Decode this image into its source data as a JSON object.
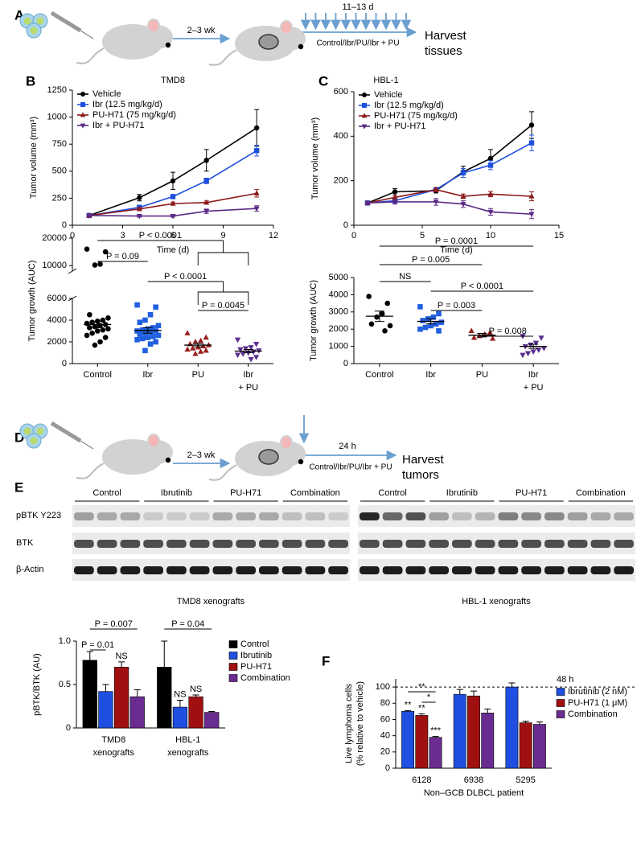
{
  "panel_labels": [
    "A",
    "B",
    "C",
    "D",
    "E",
    "F"
  ],
  "schematic_a": {
    "interval": "2–3 wk",
    "duration": "11–13 d",
    "regimen": "Control/Ibr/PU/Ibr + PU",
    "outcome": [
      "Harvest",
      "tissues"
    ]
  },
  "schematic_d": {
    "interval": "2–3 wk",
    "duration": "24 h",
    "regimen": "Control/Ibr/PU/Ibr + PU",
    "outcome": [
      "Harvest",
      "tumors"
    ]
  },
  "blots": {
    "row_labels": [
      "pBTK Y223",
      "BTK",
      "β-Actin"
    ],
    "groups": [
      "Control",
      "Ibrutinib",
      "PU-H71",
      "Combination"
    ],
    "captions": [
      "TMD8 xenografts",
      "HBL-1 xenografts"
    ]
  },
  "chart_data": [
    {
      "type": "line",
      "title": "TMD8",
      "x_label": "Time (d)",
      "y_label": "Tumor volume (mm³)",
      "xlim": [
        0,
        12
      ],
      "xticks": [
        0,
        3,
        6,
        9,
        12
      ],
      "ylim": [
        0,
        1250
      ],
      "yticks": [
        0,
        250,
        500,
        750,
        1000,
        1250
      ],
      "x": [
        1,
        4,
        6,
        8,
        11
      ],
      "series": [
        {
          "name": "Vehicle",
          "color": "#000000",
          "marker": "circle",
          "values": [
            90,
            255,
            410,
            600,
            900
          ],
          "errors": [
            10,
            30,
            80,
            100,
            170
          ]
        },
        {
          "name": "Ibr (12.5 mg/kg/d)",
          "color": "#1f4fe0",
          "marker": "square",
          "values": [
            90,
            165,
            265,
            410,
            690
          ],
          "errors": [
            10,
            20,
            20,
            25,
            50
          ]
        },
        {
          "name": "PU-H71 (75 mg/kg/d)",
          "color": "#8b1a1a",
          "marker": "triangle",
          "values": [
            90,
            150,
            200,
            210,
            295
          ],
          "errors": [
            5,
            15,
            15,
            15,
            35
          ]
        },
        {
          "name": "Ibr + PU-H71",
          "color": "#5b2a86",
          "marker": "triangle-down",
          "values": [
            90,
            85,
            85,
            130,
            155
          ],
          "errors": [
            5,
            10,
            10,
            20,
            25
          ]
        }
      ]
    },
    {
      "type": "line",
      "title": "HBL-1",
      "x_label": "Time (d)",
      "y_label": "Tumor volume (mm³)",
      "xlim": [
        0,
        15
      ],
      "xticks": [
        0,
        5,
        10,
        15
      ],
      "ylim": [
        0,
        600
      ],
      "yticks": [
        0,
        200,
        400,
        600
      ],
      "x": [
        1,
        3,
        6,
        8,
        10,
        13
      ],
      "series": [
        {
          "name": "Vehicle",
          "color": "#000000",
          "marker": "circle",
          "values": [
            100,
            150,
            155,
            240,
            300,
            450
          ],
          "errors": [
            5,
            15,
            10,
            25,
            40,
            60
          ]
        },
        {
          "name": "Ibr (12.5 mg/kg/d)",
          "color": "#1f4fe0",
          "marker": "square",
          "values": [
            100,
            110,
            160,
            235,
            270,
            370
          ],
          "errors": [
            5,
            10,
            10,
            20,
            20,
            35
          ]
        },
        {
          "name": "PU-H71 (75 mg/kg/d)",
          "color": "#8b1a1a",
          "marker": "triangle",
          "values": [
            100,
            125,
            160,
            130,
            140,
            130
          ],
          "errors": [
            5,
            10,
            10,
            10,
            12,
            20
          ]
        },
        {
          "name": "Ibr + PU-H71",
          "color": "#5b2a86",
          "marker": "triangle-down",
          "values": [
            100,
            105,
            105,
            95,
            60,
            50
          ],
          "errors": [
            5,
            10,
            15,
            15,
            15,
            20
          ]
        }
      ]
    },
    {
      "type": "dot",
      "y_label": "Tumor growth (AUC)",
      "categories": [
        "Control",
        "Ibr",
        "PU",
        "Ibr + PU"
      ],
      "colors": [
        "#000000",
        "#1f5fe0",
        "#9a2020",
        "#5b2d8e"
      ],
      "markers": [
        "circle",
        "square",
        "triangle",
        "triangle-down"
      ],
      "ylim": [
        0,
        6000
      ],
      "yticks": [
        0,
        2000,
        4000,
        6000
      ],
      "y_break_lim": [
        8000,
        20000
      ],
      "y_break_ticks": [
        10000,
        20000
      ],
      "points": [
        [
          16000,
          15000,
          10500,
          10200,
          4500,
          4200,
          4000,
          3900,
          3800,
          3700,
          3600,
          3500,
          3400,
          3300,
          3200,
          3100,
          3000,
          2800,
          2600,
          2400,
          2000,
          1700
        ],
        [
          5400,
          5200,
          4500,
          4000,
          3800,
          3500,
          3300,
          3200,
          3100,
          3000,
          3000,
          2900,
          2800,
          2700,
          2600,
          2500,
          2400,
          2300,
          2200,
          2000,
          1800,
          1200
        ],
        [
          2800,
          2400,
          2100,
          2000,
          1800,
          1700,
          1600,
          1500,
          1400,
          1300,
          1200,
          1100,
          900
        ],
        [
          2200,
          1800,
          1500,
          1400,
          1300,
          1200,
          1100,
          1000,
          900,
          800,
          600,
          400
        ]
      ],
      "means": [
        3600,
        3050,
        1700,
        1150
      ],
      "errors": [
        300,
        250,
        150,
        150
      ],
      "annotations": [
        "P < 0.0001",
        "P = 0.09",
        "P < 0.0001",
        "P = 0.0045"
      ]
    },
    {
      "type": "dot",
      "y_label": "Tumor growth (AUC)",
      "categories": [
        "Control",
        "Ibr",
        "PU",
        "Ibr + PU"
      ],
      "colors": [
        "#000000",
        "#1f5fe0",
        "#9a2020",
        "#5b2d8e"
      ],
      "markers": [
        "circle",
        "square",
        "triangle",
        "triangle-down"
      ],
      "ylim": [
        0,
        5000
      ],
      "yticks": [
        0,
        1000,
        2000,
        3000,
        4000,
        5000
      ],
      "points": [
        [
          3900,
          3500,
          2900,
          2700,
          2300,
          2200,
          1900
        ],
        [
          3300,
          2900,
          2700,
          2600,
          2500,
          2400,
          2300,
          2200,
          2100,
          2000,
          1900
        ],
        [
          1900,
          1800,
          1700,
          1600,
          1500,
          1450
        ],
        [
          1600,
          1500,
          1200,
          1100,
          1000,
          900,
          800,
          700,
          600,
          500
        ]
      ],
      "means": [
        2750,
        2450,
        1650,
        1000
      ],
      "errors": [
        300,
        150,
        100,
        120
      ],
      "annotations": [
        "P = 0.0001",
        "P = 0.005",
        "NS",
        "P < 0.0001",
        "P = 0.003",
        "P = 0.008"
      ]
    },
    {
      "type": "bar",
      "y_label": "pBTK/BTK (AU)",
      "categories": [
        "TMD8 xenografts",
        "HBL-1 xenografts"
      ],
      "ylim": [
        0,
        1
      ],
      "yticks": [
        0,
        0.5,
        {
          "value": 1,
          "label": "1.0"
        }
      ],
      "series": [
        {
          "name": "Control",
          "color": "#000000",
          "values": [
            0.78,
            0.7
          ],
          "errors": [
            0.1,
            0.3
          ]
        },
        {
          "name": "Ibrutinib",
          "color": "#1f4fe0",
          "values": [
            0.42,
            0.24
          ],
          "errors": [
            0.08,
            0.08
          ]
        },
        {
          "name": "PU-H71",
          "color": "#a01010",
          "values": [
            0.7,
            0.36
          ],
          "errors": [
            0.06,
            0.02
          ]
        },
        {
          "name": "Combination",
          "color": "#6a2c91",
          "values": [
            0.36,
            0.18
          ],
          "errors": [
            0.08,
            0.01
          ]
        }
      ],
      "annotations": [
        "P = 0.007",
        "P = 0.01",
        "NS",
        "P = 0.04",
        "NS",
        "NS"
      ]
    },
    {
      "type": "bar",
      "y_label": [
        "Live lymphoma cells",
        "(% relative to vehicle)"
      ],
      "x_label": "Non–GCB DLBCL patient",
      "categories": [
        "6128",
        "6938",
        "5295"
      ],
      "ylim": [
        0,
        110
      ],
      "yticks": [
        0,
        20,
        40,
        60,
        80,
        100
      ],
      "ref_line": 100,
      "legend_title": "48 h",
      "series": [
        {
          "name": "Ibrutinib (2 nM)",
          "color": "#1f4fe0",
          "values": [
            70,
            91,
            100
          ],
          "errors": [
            1,
            6,
            5
          ]
        },
        {
          "name": "PU-H71 (1 μM)",
          "color": "#a01010",
          "values": [
            65,
            89,
            56
          ],
          "errors": [
            2,
            6,
            2
          ]
        },
        {
          "name": "Combination",
          "color": "#6a2c91",
          "values": [
            38,
            68,
            54
          ],
          "errors": [
            1,
            5,
            3
          ]
        }
      ],
      "annotations": [
        "**",
        "**",
        "***",
        "**",
        "*"
      ]
    }
  ]
}
